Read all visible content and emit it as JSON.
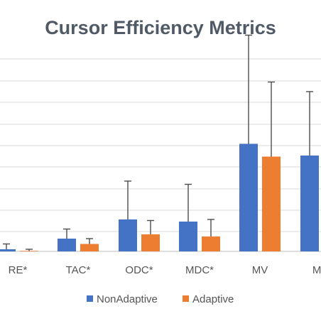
{
  "chart_data": {
    "type": "bar",
    "title": "Cursor Efficiency Metrics",
    "xlabel": "",
    "ylabel": "",
    "categories": [
      "RE*",
      "TAC*",
      "ODC*",
      "MDC*",
      "MV",
      "MO"
    ],
    "series": [
      {
        "name": "NonAdaptive",
        "color": "#4472c4",
        "values": [
          0.2,
          1.2,
          3.0,
          2.8,
          10.1,
          9.0
        ],
        "error": [
          0.5,
          0.9,
          3.6,
          3.5,
          10.2,
          6.0
        ]
      },
      {
        "name": "Adaptive",
        "color": "#ed7d31",
        "values": [
          0.05,
          0.7,
          1.6,
          1.4,
          8.9,
          0
        ],
        "error": [
          0.15,
          0.5,
          1.3,
          1.6,
          7.0,
          0
        ]
      }
    ],
    "ylim": [
      0,
      21
    ],
    "grid": true,
    "legend": "bottom"
  }
}
